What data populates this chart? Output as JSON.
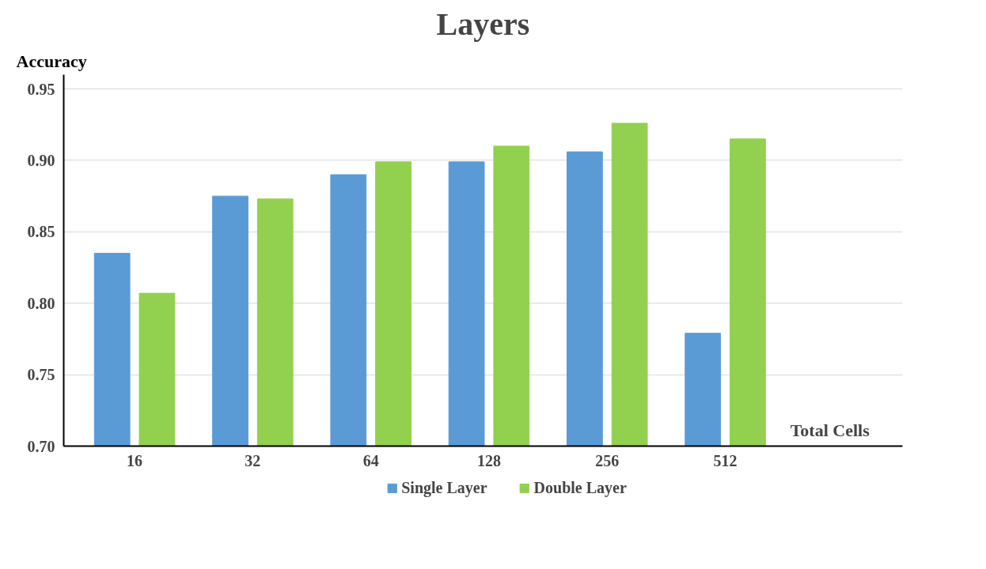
{
  "chart_data": {
    "type": "bar",
    "title": "Layers",
    "xlabel": "Total Cells",
    "ylabel": "Accuracy",
    "categories": [
      "16",
      "32",
      "64",
      "128",
      "256",
      "512"
    ],
    "series": [
      {
        "name": "Single Layer",
        "color": "#5b9bd5",
        "values": [
          0.835,
          0.875,
          0.89,
          0.899,
          0.906,
          0.779
        ]
      },
      {
        "name": "Double Layer",
        "color": "#92d050",
        "values": [
          0.807,
          0.873,
          0.899,
          0.91,
          0.926,
          0.915
        ]
      }
    ],
    "ylim": [
      0.7,
      0.96
    ],
    "yticks": [
      {
        "value": 0.7,
        "label": "0.70"
      },
      {
        "value": 0.75,
        "label": "0.75"
      },
      {
        "value": 0.8,
        "label": "0.80"
      },
      {
        "value": 0.85,
        "label": "0.85"
      },
      {
        "value": 0.9,
        "label": "0.90"
      },
      {
        "value": 0.95,
        "label": "0.95"
      }
    ],
    "grid": "y",
    "legend": "bottom"
  }
}
